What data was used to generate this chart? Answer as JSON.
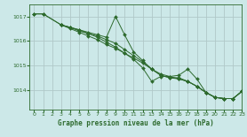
{
  "background_color": "#cce8e8",
  "grid_color": "#b0c8c8",
  "line_color": "#2d6a2d",
  "marker_color": "#2d6a2d",
  "xlabel": "Graphe pression niveau de la mer (hPa)",
  "xlim": [
    -0.5,
    23
  ],
  "ylim": [
    1013.2,
    1017.5
  ],
  "yticks": [
    1014,
    1015,
    1016,
    1017
  ],
  "xticks": [
    0,
    1,
    2,
    3,
    4,
    5,
    6,
    7,
    8,
    9,
    10,
    11,
    12,
    13,
    14,
    15,
    16,
    17,
    18,
    19,
    20,
    21,
    22,
    23
  ],
  "series": [
    {
      "x": [
        0,
        1,
        3,
        4,
        5,
        6,
        7,
        8,
        9,
        10,
        11,
        12,
        13,
        14,
        15,
        16,
        17,
        18,
        19,
        20,
        21,
        22,
        23
      ],
      "y": [
        1017.1,
        1017.1,
        1016.65,
        1016.5,
        1016.35,
        1016.2,
        1016.05,
        1015.85,
        1015.7,
        1015.5,
        1015.3,
        1015.1,
        1014.85,
        1014.65,
        1014.55,
        1014.45,
        1014.35,
        1014.15,
        1013.9,
        1013.7,
        1013.65,
        1013.65,
        1013.95
      ]
    },
    {
      "x": [
        0,
        1,
        3,
        4,
        5,
        6,
        7,
        8,
        9,
        10,
        11,
        12,
        13,
        14,
        15,
        16,
        17,
        18,
        19,
        20,
        21,
        22,
        23
      ],
      "y": [
        1017.1,
        1017.1,
        1016.65,
        1016.55,
        1016.45,
        1016.3,
        1016.2,
        1016.05,
        1015.9,
        1015.65,
        1015.4,
        1015.15,
        1014.85,
        1014.6,
        1014.5,
        1014.45,
        1014.35,
        1014.15,
        1013.9,
        1013.7,
        1013.65,
        1013.65,
        1013.95
      ]
    },
    {
      "x": [
        3,
        4,
        5,
        6,
        7,
        8,
        9,
        10,
        11,
        12,
        13,
        14,
        15,
        16,
        17,
        18,
        19,
        20,
        21,
        22,
        23
      ],
      "y": [
        1016.65,
        1016.55,
        1016.45,
        1016.35,
        1016.25,
        1016.15,
        1017.0,
        1016.25,
        1015.55,
        1015.2,
        1014.85,
        1014.6,
        1014.5,
        1014.5,
        1014.35,
        1014.15,
        1013.9,
        1013.7,
        1013.65,
        1013.65,
        1013.95
      ]
    },
    {
      "x": [
        3,
        4,
        5,
        6,
        7,
        8,
        9,
        10,
        11,
        12,
        13,
        14,
        15,
        16,
        17,
        18,
        19,
        20,
        21,
        22,
        23
      ],
      "y": [
        1016.65,
        1016.55,
        1016.4,
        1016.3,
        1016.15,
        1015.95,
        1015.75,
        1015.5,
        1015.25,
        1014.9,
        1014.35,
        1014.55,
        1014.55,
        1014.6,
        1014.85,
        1014.45,
        1013.9,
        1013.7,
        1013.65,
        1013.65,
        1013.95
      ]
    }
  ]
}
